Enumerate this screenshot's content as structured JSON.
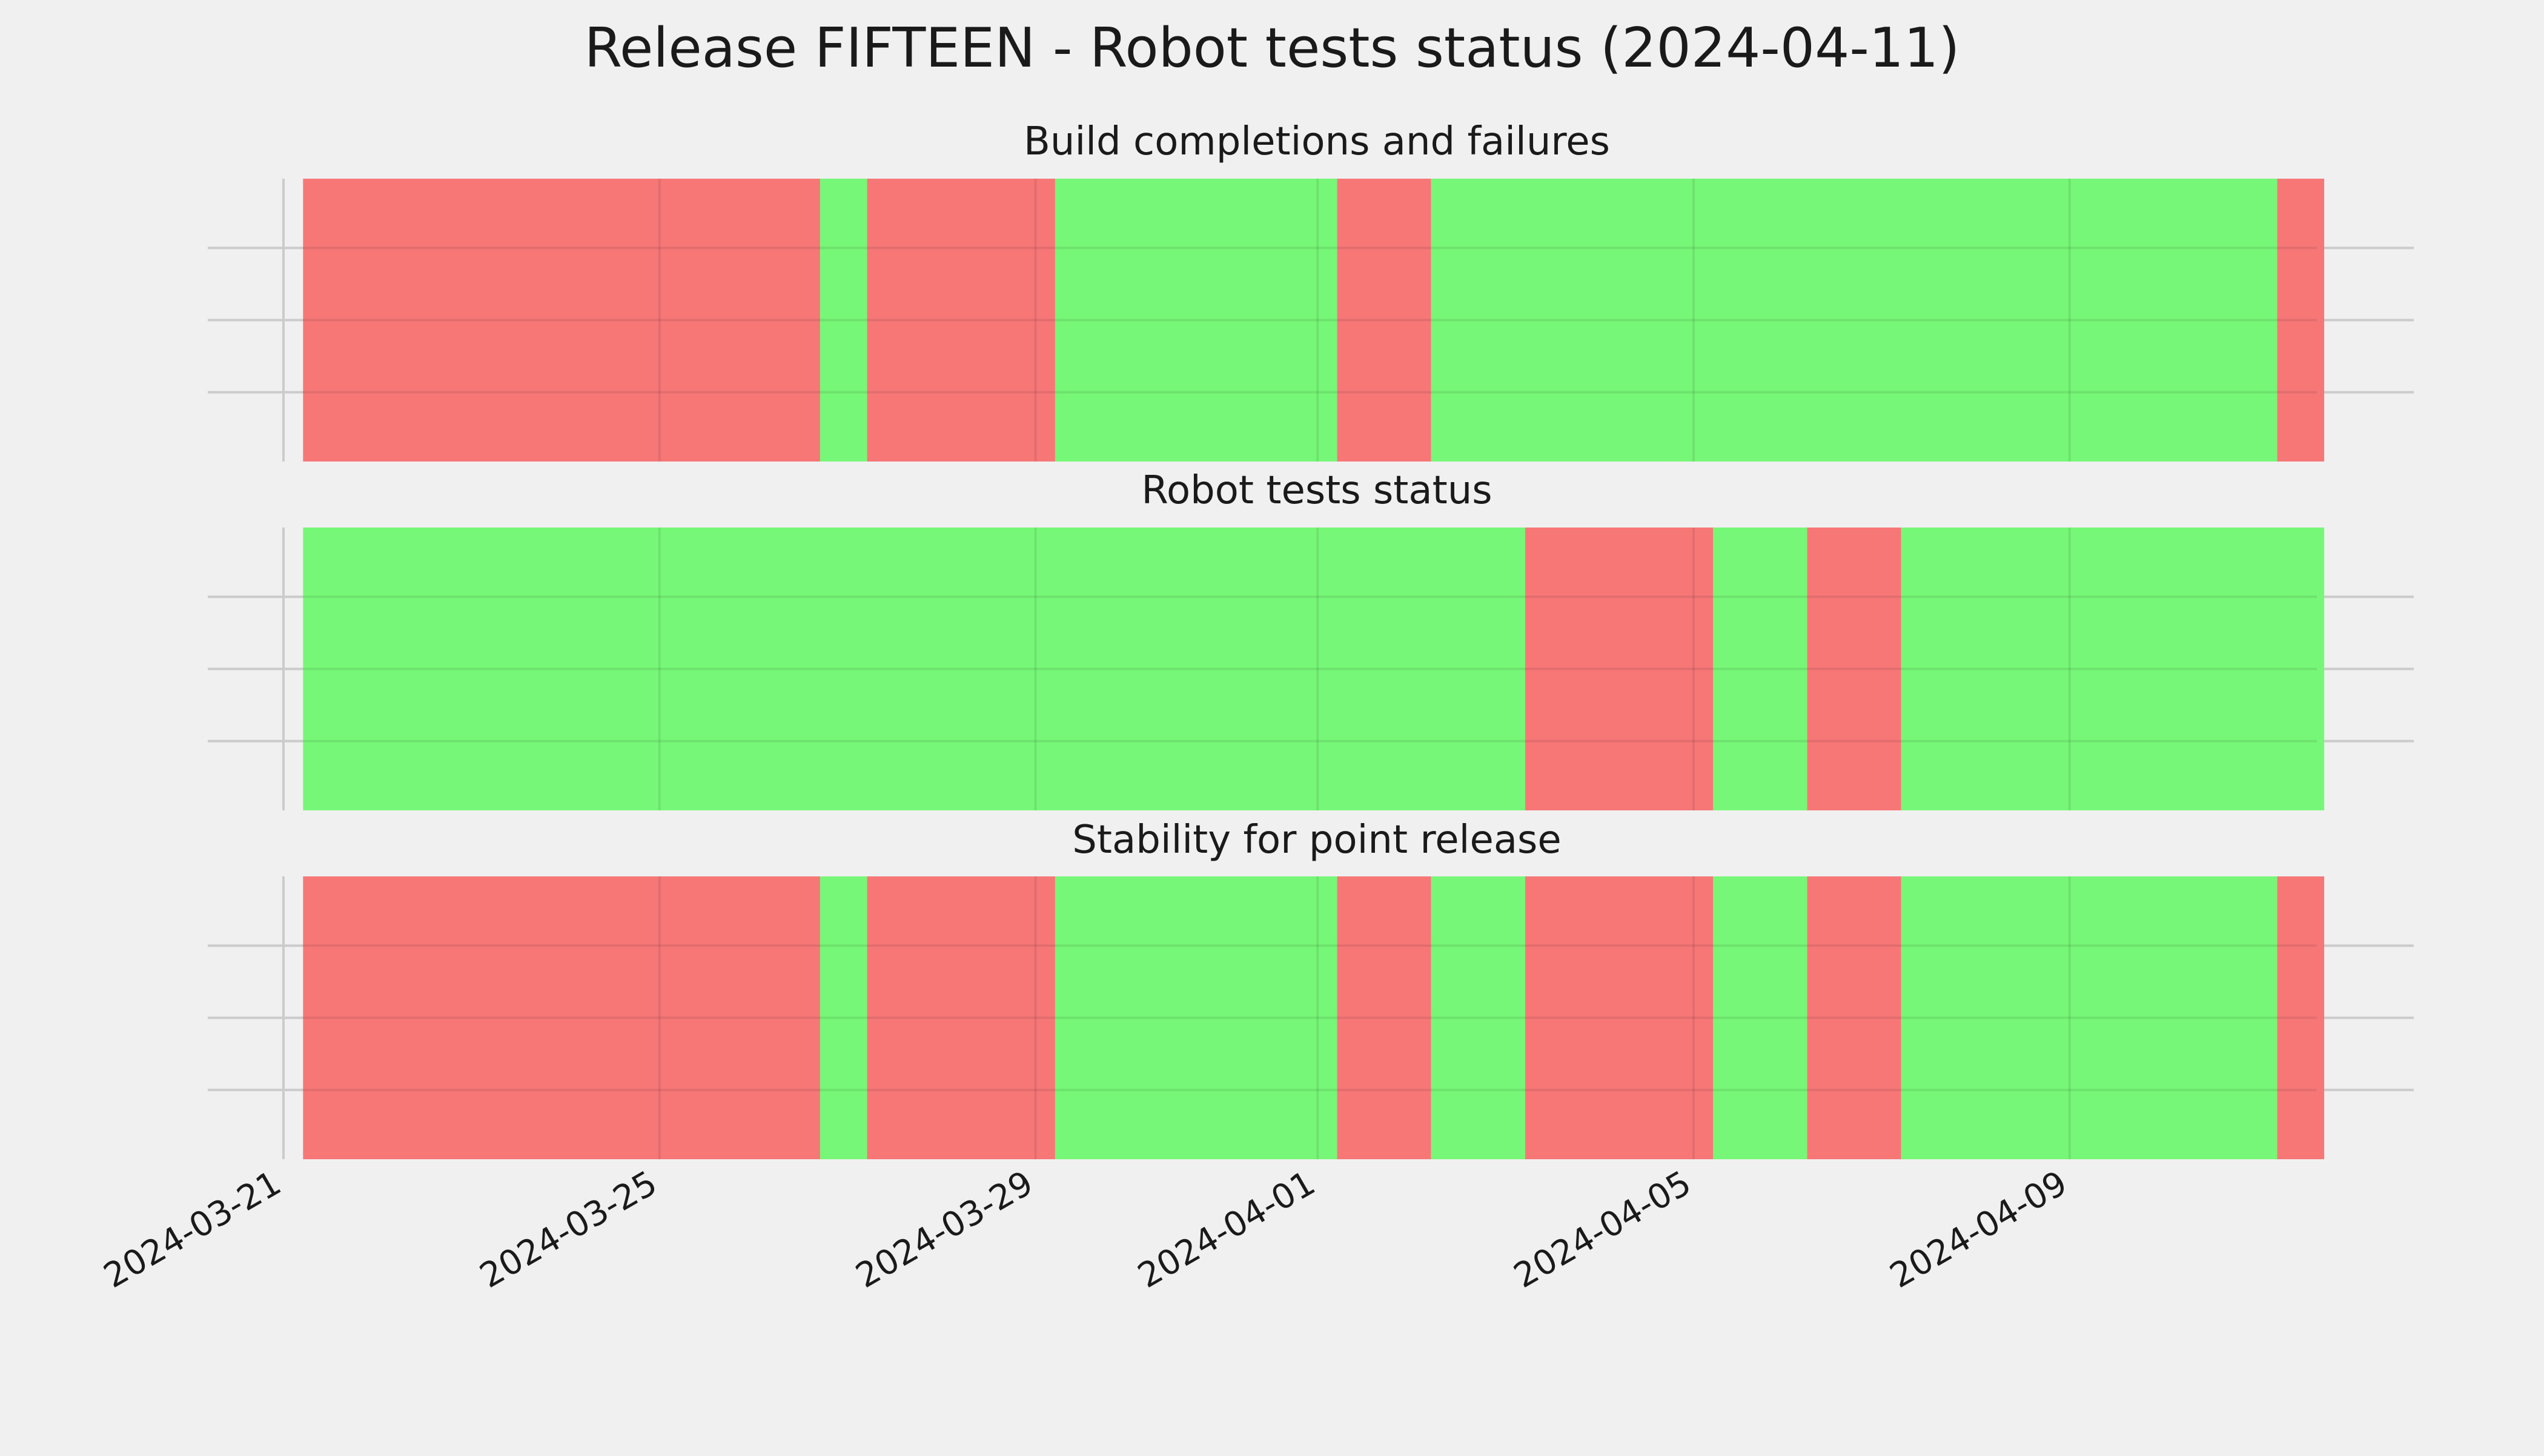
{
  "chart_data": {
    "type": "timeline",
    "title": "Release FIFTEEN - Robot tests status (2024-04-11)",
    "x_ticks": [
      "2024-03-21",
      "2024-03-25",
      "2024-03-29",
      "2024-04-01",
      "2024-04-05",
      "2024-04-09"
    ],
    "x_range": [
      "2024-03-21",
      "2024-04-12"
    ],
    "grid": true,
    "colors": {
      "pass": "#77f777",
      "fail": "#f77777",
      "background": "#f0f0f0",
      "grid": "#cbcbcb"
    },
    "panels": [
      {
        "title": "Build completions and failures",
        "segments": [
          {
            "start": "2024-03-21 05:00",
            "end": "2024-03-26 17:00",
            "status": "fail"
          },
          {
            "start": "2024-03-26 17:00",
            "end": "2024-03-27 05:00",
            "status": "pass"
          },
          {
            "start": "2024-03-27 05:00",
            "end": "2024-03-29 05:00",
            "status": "fail"
          },
          {
            "start": "2024-03-29 05:00",
            "end": "2024-04-01 05:00",
            "status": "pass"
          },
          {
            "start": "2024-04-01 05:00",
            "end": "2024-04-02 05:00",
            "status": "fail"
          },
          {
            "start": "2024-04-02 05:00",
            "end": "2024-04-11 05:00",
            "status": "pass"
          },
          {
            "start": "2024-04-11 05:00",
            "end": "2024-04-11 17:00",
            "status": "fail"
          }
        ]
      },
      {
        "title": "Robot tests status",
        "segments": [
          {
            "start": "2024-03-21 05:00",
            "end": "2024-04-03 05:00",
            "status": "pass"
          },
          {
            "start": "2024-04-03 05:00",
            "end": "2024-04-05 05:00",
            "status": "fail"
          },
          {
            "start": "2024-04-05 05:00",
            "end": "2024-04-06 05:00",
            "status": "pass"
          },
          {
            "start": "2024-04-06 05:00",
            "end": "2024-04-07 05:00",
            "status": "fail"
          },
          {
            "start": "2024-04-07 05:00",
            "end": "2024-04-11 17:00",
            "status": "pass"
          }
        ]
      },
      {
        "title": "Stability for point release",
        "segments": [
          {
            "start": "2024-03-21 05:00",
            "end": "2024-03-26 17:00",
            "status": "fail"
          },
          {
            "start": "2024-03-26 17:00",
            "end": "2024-03-27 05:00",
            "status": "pass"
          },
          {
            "start": "2024-03-27 05:00",
            "end": "2024-03-29 05:00",
            "status": "fail"
          },
          {
            "start": "2024-03-29 05:00",
            "end": "2024-04-01 05:00",
            "status": "pass"
          },
          {
            "start": "2024-04-01 05:00",
            "end": "2024-04-02 05:00",
            "status": "fail"
          },
          {
            "start": "2024-04-02 05:00",
            "end": "2024-04-03 05:00",
            "status": "pass"
          },
          {
            "start": "2024-04-03 05:00",
            "end": "2024-04-05 05:00",
            "status": "fail"
          },
          {
            "start": "2024-04-05 05:00",
            "end": "2024-04-06 05:00",
            "status": "pass"
          },
          {
            "start": "2024-04-06 05:00",
            "end": "2024-04-07 05:00",
            "status": "fail"
          },
          {
            "start": "2024-04-07 05:00",
            "end": "2024-04-11 05:00",
            "status": "pass"
          },
          {
            "start": "2024-04-11 05:00",
            "end": "2024-04-11 17:00",
            "status": "fail"
          }
        ]
      }
    ]
  }
}
